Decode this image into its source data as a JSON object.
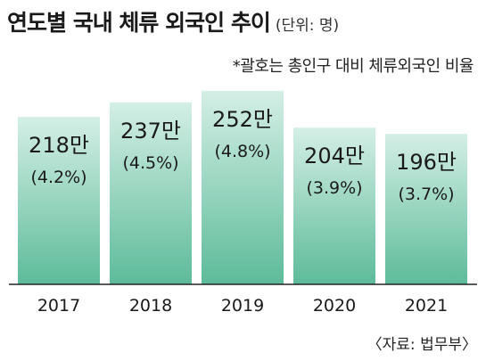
{
  "chart_data": {
    "type": "bar",
    "title": "연도별 국내 체류 외국인 추이",
    "unit_label": "(단위: 명)",
    "note": "*괄호는 총인구 대비 체류외국인 비율",
    "source": "〈자료: 법무부〉",
    "categories": [
      "2017",
      "2018",
      "2019",
      "2020",
      "2021"
    ],
    "values": [
      218,
      237,
      252,
      204,
      196
    ],
    "value_labels": [
      "218만",
      "237만",
      "252만",
      "204만",
      "196만"
    ],
    "ratio_labels": [
      "(4.2%)",
      "(4.5%)",
      "(4.8%)",
      "(3.9%)",
      "(3.7%)"
    ],
    "ylim": [
      0,
      260
    ],
    "grid": false,
    "colors": {
      "bar_top": "#d4efe5",
      "bar_bottom": "#5dbb9a",
      "axis": "#222222"
    }
  }
}
